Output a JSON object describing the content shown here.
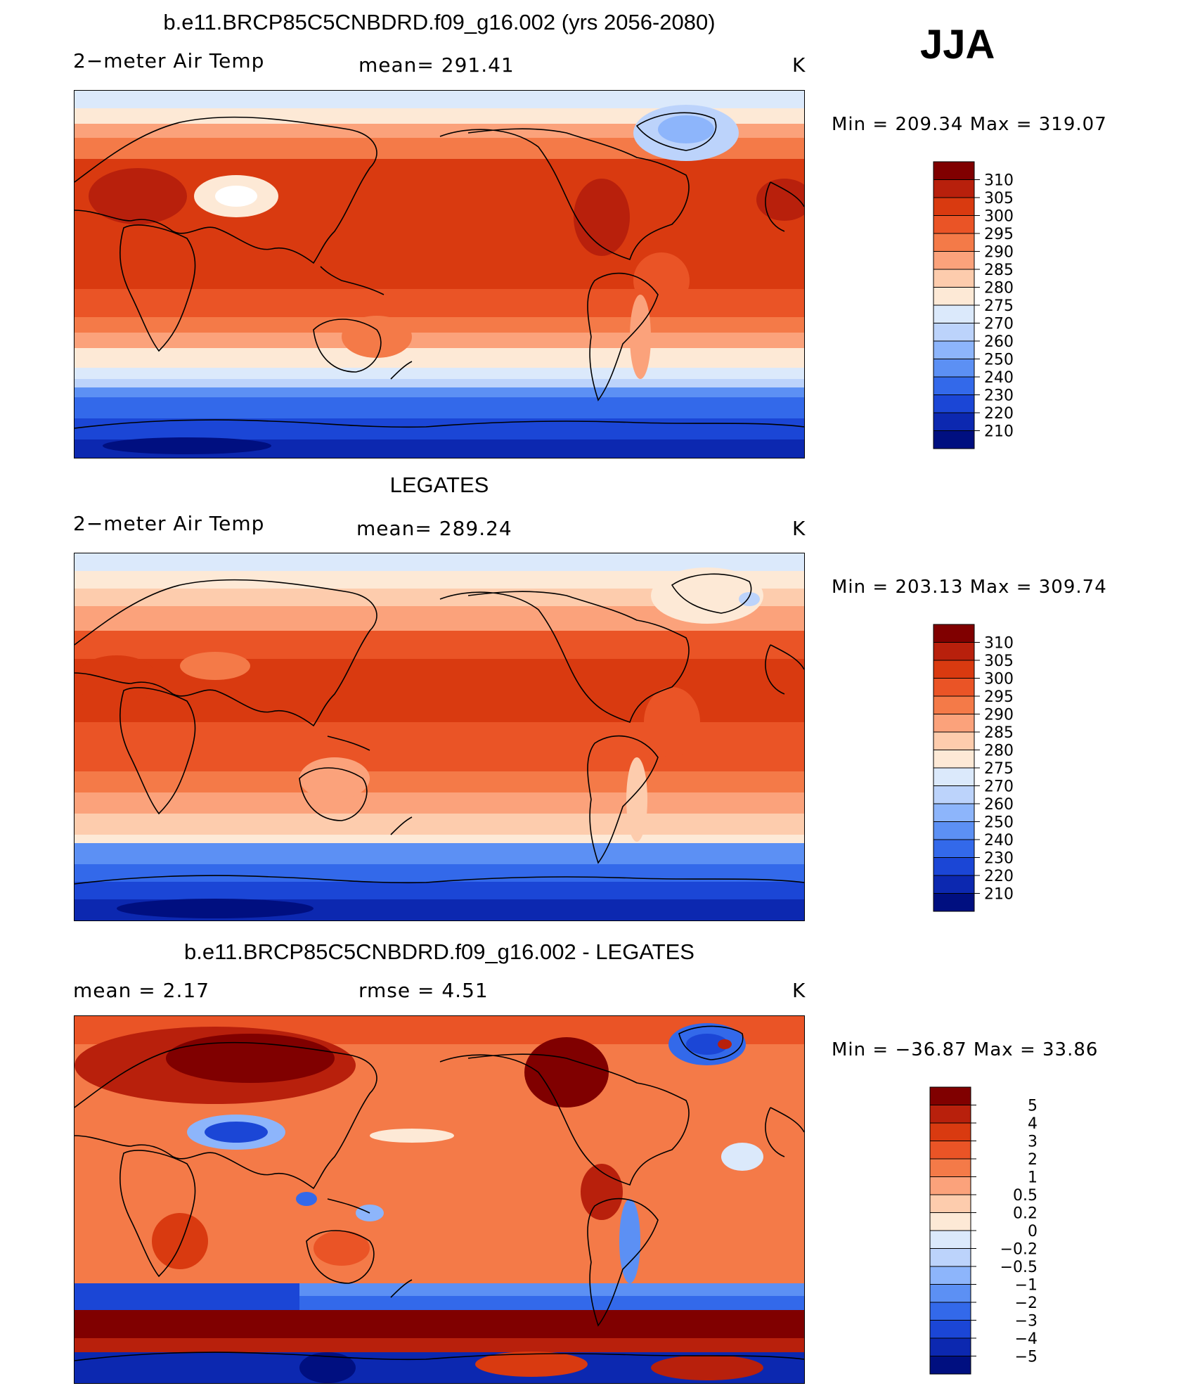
{
  "season": "JJA",
  "panels": [
    {
      "title": "b.e11.BRCP85C5CNBDRD.f09_g16.002 (yrs 2056-2080)",
      "left_label": "2−meter Air Temp",
      "mid_label": "mean= 291.41",
      "right_label": "K",
      "minmax": "Min = 209.34 Max = 319.07",
      "colorbar": {
        "labels": [
          "310",
          "305",
          "300",
          "295",
          "290",
          "285",
          "280",
          "275",
          "270",
          "260",
          "250",
          "240",
          "230",
          "220",
          "210"
        ],
        "colors": [
          "#800000",
          "#b8200c",
          "#d93a10",
          "#ea5426",
          "#f47a48",
          "#fba27b",
          "#fdccad",
          "#fde9d6",
          "#dbe9fb",
          "#bcd3fb",
          "#8db5fb",
          "#5c90f4",
          "#3369ea",
          "#1b46d6",
          "#0c28b0",
          "#000f80"
        ]
      }
    },
    {
      "title": "LEGATES",
      "left_label": "2−meter Air Temp",
      "mid_label": "mean= 289.24",
      "right_label": "K",
      "minmax": "Min = 203.13 Max = 309.74",
      "colorbar": {
        "labels": [
          "310",
          "305",
          "300",
          "295",
          "290",
          "285",
          "280",
          "275",
          "270",
          "260",
          "250",
          "240",
          "230",
          "220",
          "210"
        ],
        "colors": [
          "#800000",
          "#b8200c",
          "#d93a10",
          "#ea5426",
          "#f47a48",
          "#fba27b",
          "#fdccad",
          "#fde9d6",
          "#dbe9fb",
          "#bcd3fb",
          "#8db5fb",
          "#5c90f4",
          "#3369ea",
          "#1b46d6",
          "#0c28b0",
          "#000f80"
        ]
      }
    },
    {
      "title": "b.e11.BRCP85C5CNBDRD.f09_g16.002 - LEGATES",
      "left_label": "mean =    2.17",
      "mid_label": "rmse =    4.51",
      "right_label": "K",
      "minmax": "Min = −36.87 Max =   33.86",
      "colorbar": {
        "labels": [
          "5",
          "4",
          "3",
          "2",
          "1",
          "0.5",
          "0.2",
          "0",
          "−0.2",
          "−0.5",
          "−1",
          "−2",
          "−3",
          "−4",
          "−5"
        ],
        "colors": [
          "#800000",
          "#b8200c",
          "#d93a10",
          "#ea5426",
          "#f47a48",
          "#fba27b",
          "#fdccad",
          "#fde9d6",
          "#dbe9fb",
          "#bcd3fb",
          "#8db5fb",
          "#5c90f4",
          "#3369ea",
          "#1b46d6",
          "#0c28b0",
          "#000f80"
        ]
      }
    }
  ]
}
